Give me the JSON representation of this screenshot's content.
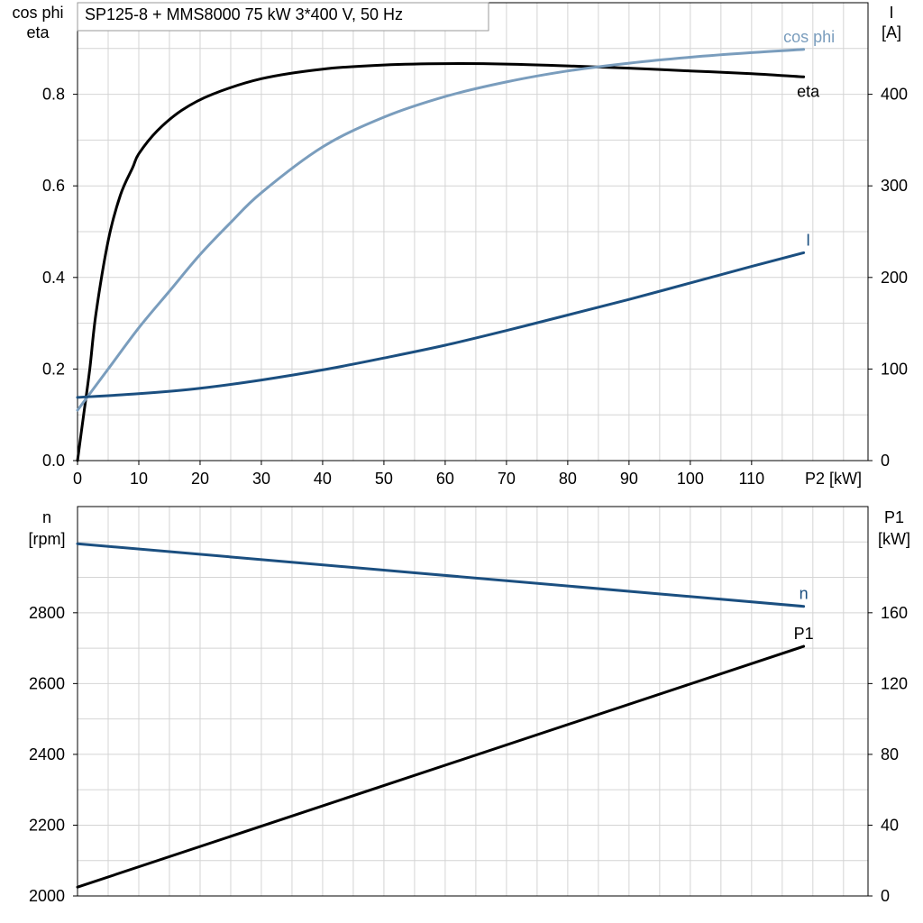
{
  "chart_data": [
    {
      "type": "line",
      "title": "SP125-8 + MMS8000   75 kW   3*400 V, 50 Hz",
      "xlabel": "P2 [kW]",
      "ylabel_left_line1": "cos phi",
      "ylabel_left_line2": "eta",
      "ylabel_right_line1": "I",
      "ylabel_right_line2": "[A]",
      "xlim": [
        0,
        129
      ],
      "ylim_left": [
        0,
        1.0
      ],
      "ylim_right": [
        0,
        500
      ],
      "x_ticks": [
        "0",
        "10",
        "20",
        "30",
        "40",
        "50",
        "60",
        "70",
        "80",
        "90",
        "100",
        "110"
      ],
      "y_left_ticks": [
        "0.0",
        "0.2",
        "0.4",
        "0.6",
        "0.8"
      ],
      "y_right_ticks": [
        "0",
        "100",
        "200",
        "300",
        "400"
      ],
      "grid": true,
      "series": [
        {
          "name": "eta",
          "axis": "left",
          "color": "#000000",
          "x": [
            0,
            1,
            2,
            3,
            5,
            7,
            9,
            10,
            13,
            17,
            22,
            30,
            40,
            50,
            60,
            70,
            80,
            90,
            100,
            110,
            118.5
          ],
          "y": [
            0.0,
            0.1,
            0.2,
            0.32,
            0.48,
            0.58,
            0.64,
            0.67,
            0.72,
            0.765,
            0.8,
            0.834,
            0.855,
            0.864,
            0.867,
            0.866,
            0.862,
            0.857,
            0.851,
            0.845,
            0.838
          ]
        },
        {
          "name": "cos phi",
          "axis": "left",
          "color": "#7a9dbd",
          "x": [
            0,
            5,
            10,
            15,
            20,
            25,
            30,
            40,
            50,
            60,
            70,
            80,
            90,
            100,
            110,
            118.5
          ],
          "y": [
            0.11,
            0.2,
            0.29,
            0.37,
            0.45,
            0.52,
            0.585,
            0.685,
            0.75,
            0.795,
            0.827,
            0.851,
            0.868,
            0.881,
            0.891,
            0.898
          ]
        },
        {
          "name": "I",
          "axis": "right",
          "color": "#1b4f80",
          "x": [
            0,
            10,
            20,
            30,
            40,
            50,
            60,
            70,
            80,
            90,
            100,
            110,
            118.5
          ],
          "y": [
            69,
            73,
            79,
            88,
            99,
            112,
            126,
            142,
            159,
            176,
            194,
            212,
            227
          ]
        }
      ]
    },
    {
      "type": "line",
      "ylabel_left_line1": "n",
      "ylabel_left_line2": "[rpm]",
      "ylabel_right_line1": "P1",
      "ylabel_right_line2": "[kW]",
      "xlim": [
        0,
        129
      ],
      "ylim_left": [
        2000,
        3100
      ],
      "ylim_right": [
        0,
        220
      ],
      "y_left_ticks": [
        "2000",
        "2200",
        "2400",
        "2600",
        "2800"
      ],
      "y_right_ticks": [
        "0",
        "40",
        "80",
        "120",
        "160"
      ],
      "grid": true,
      "series": [
        {
          "name": "n",
          "axis": "left",
          "color": "#1b4f80",
          "x": [
            0,
            118.5
          ],
          "y": [
            2995,
            2818
          ]
        },
        {
          "name": "P1",
          "axis": "right",
          "color": "#000000",
          "x": [
            0,
            118.5
          ],
          "y": [
            5,
            141
          ]
        }
      ]
    }
  ]
}
